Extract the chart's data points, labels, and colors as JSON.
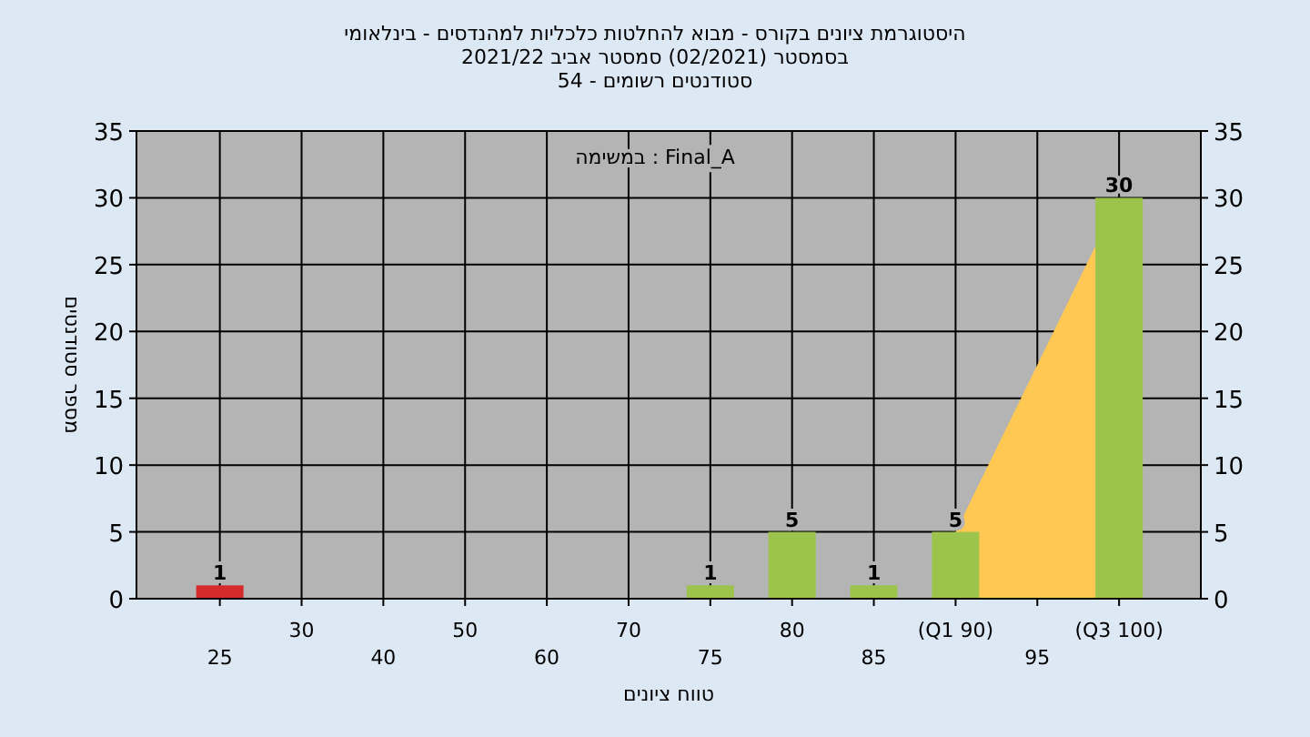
{
  "chart_data": {
    "type": "bar",
    "title": "היסטוגרמת ציונים בקורס - מבוא להחלטות כלכליות למהנדסים - בינלאומי",
    "subtitle": "בסמסטר  (02/2021)  סמסטר אביב 2021/22",
    "xlabel": "טווח ציונים",
    "ylabel": "מספר סטודנטים",
    "annotations": [
      "סטודנטים רשומים - 54",
      "במשימה : Final_A"
    ],
    "categories": [
      "25",
      "30",
      "40",
      "50",
      "60",
      "70",
      "75",
      "80",
      "85",
      "(Q1 90)",
      "95",
      "(Q3 100)"
    ],
    "series": [
      {
        "type": "area",
        "color": "#ffc853",
        "values": [
          null,
          null,
          null,
          null,
          null,
          null,
          null,
          null,
          null,
          5,
          17.5,
          30
        ]
      },
      {
        "colors": [
          "#d42a2a",
          "#9cc44c",
          "#9cc44c",
          "#9cc44c",
          "#9cc44c",
          "#9cc44c",
          "#9cc44c",
          "#9cc44c",
          "#9cc44c",
          "#9cc44c",
          "#9cc44c",
          "#9cc44c"
        ],
        "values": [
          1,
          0,
          0,
          0,
          0,
          0,
          1,
          5,
          1,
          5,
          0,
          30
        ],
        "value_labels": [
          "1",
          null,
          null,
          null,
          null,
          null,
          "1",
          "5",
          "1",
          "5",
          null,
          "30"
        ]
      }
    ],
    "ylim": [
      0,
      35
    ],
    "yticks": [
      0,
      5,
      10,
      15,
      20,
      25,
      30,
      35
    ],
    "y2lim": [
      0,
      35
    ],
    "y2ticks": [
      0,
      5,
      10,
      15,
      20,
      25,
      30,
      35
    ],
    "grid": true
  }
}
